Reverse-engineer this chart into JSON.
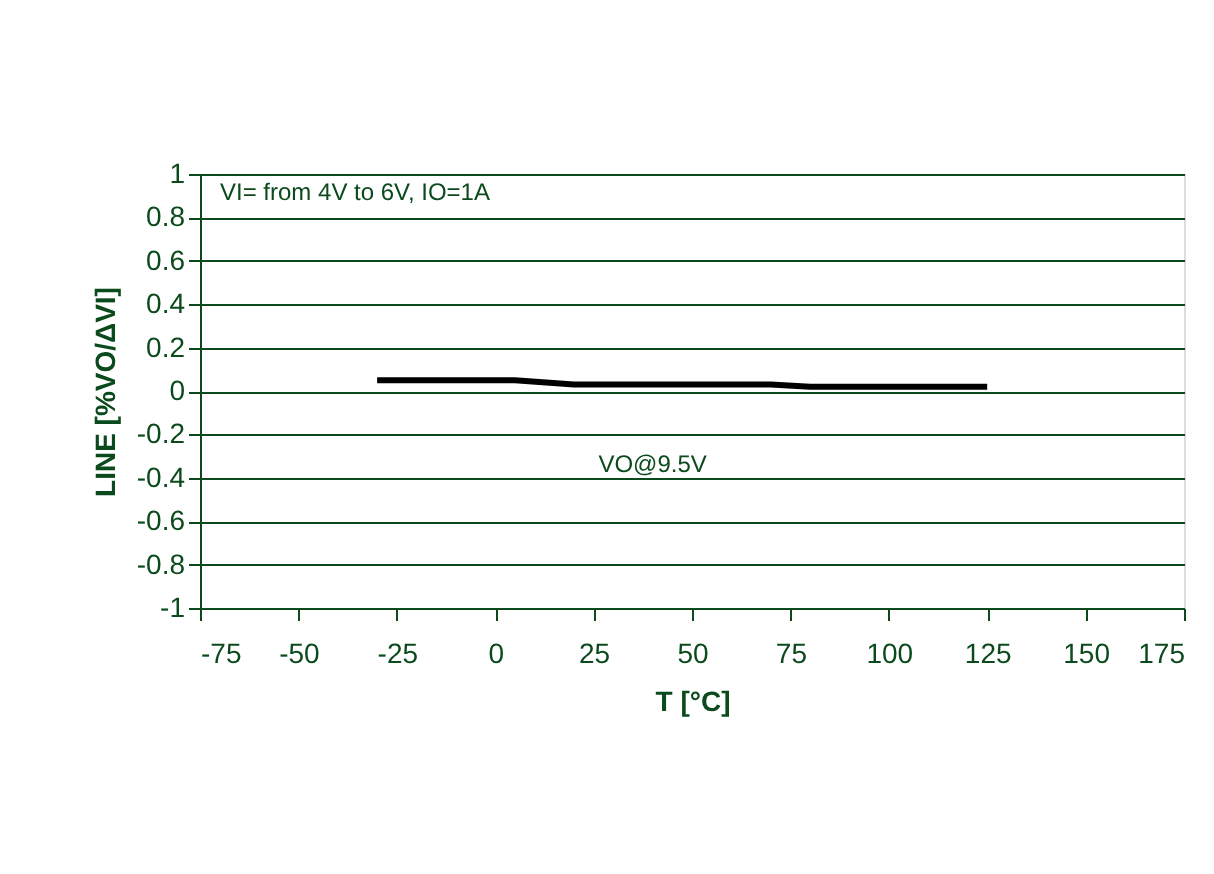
{
  "chart_data": {
    "type": "line",
    "xlabel": "T [°C]",
    "ylabel": "LINE [%VO/ΔVI]",
    "annotations": [
      "VI= from 4V to 6V, IO=1A"
    ],
    "series": [
      {
        "name": "VO@9.5V",
        "color": "#000000",
        "x": [
          -30,
          5,
          20,
          40,
          70,
          80,
          125
        ],
        "values": [
          0.05,
          0.05,
          0.03,
          0.03,
          0.03,
          0.02,
          0.02
        ]
      }
    ],
    "xlim": [
      -75,
      175
    ],
    "xticks": [
      -75,
      -50,
      -25,
      0,
      25,
      50,
      75,
      100,
      125,
      150,
      175
    ],
    "ylim": [
      -1,
      1
    ],
    "yticks": [
      -1,
      -0.8,
      -0.6,
      -0.4,
      -0.2,
      0,
      0.2,
      0.4,
      0.6,
      0.8,
      1
    ],
    "grid": "y",
    "legend": false,
    "marker": "none",
    "line_style": "solid"
  }
}
